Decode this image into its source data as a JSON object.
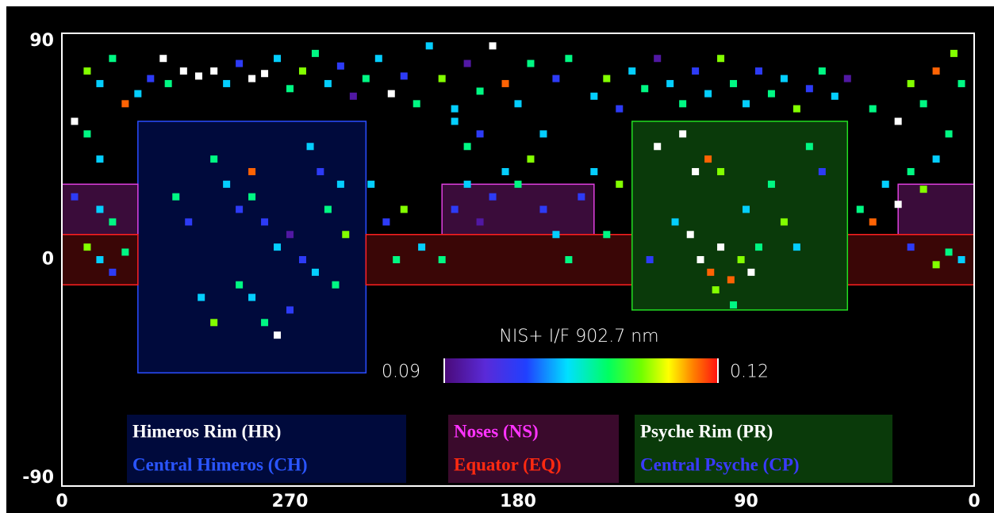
{
  "chart_data": {
    "type": "map",
    "xlim": [
      360,
      0
    ],
    "ylim": [
      -90,
      90
    ],
    "xticks": [
      {
        "value": 360,
        "label": "0"
      },
      270,
      180,
      90,
      0
    ],
    "yticks": [
      -90,
      0,
      90
    ],
    "colorbar": {
      "title": "NIS+ I/F 902.7 nm",
      "lim": [
        0.09,
        0.12
      ],
      "ticks": [
        0.09,
        0.12
      ]
    },
    "pixels": {
      "lon": [
        350,
        345,
        340,
        335,
        330,
        325,
        320,
        318,
        312,
        306,
        300,
        295,
        290,
        285,
        280,
        275,
        270,
        265,
        260,
        255,
        250,
        245,
        240,
        235,
        230,
        225,
        220,
        215,
        210,
        205,
        200,
        195,
        190,
        185,
        180,
        175,
        170,
        165,
        160,
        150,
        145,
        140,
        135,
        130,
        125,
        120,
        115,
        110,
        105,
        100,
        95,
        90,
        85,
        80,
        75,
        70,
        65,
        60,
        55,
        50,
        40,
        30,
        25,
        20,
        15,
        8,
        5,
        355,
        350,
        345,
        355,
        345,
        340,
        350,
        345,
        335,
        340,
        300,
        295,
        290,
        285,
        280,
        275,
        270,
        265,
        260,
        255,
        250,
        248,
        252,
        285,
        280,
        275,
        270,
        290,
        300,
        305,
        310,
        315,
        258,
        262,
        285,
        238,
        232,
        228,
        225,
        218,
        210,
        205,
        200,
        195,
        190,
        185,
        180,
        175,
        170,
        165,
        160,
        155,
        150,
        145,
        140,
        200,
        205,
        195,
        125,
        115,
        110,
        105,
        100,
        112,
        108,
        104,
        100,
        96,
        92,
        88,
        85,
        102,
        95,
        118,
        90,
        80,
        75,
        70,
        65,
        60,
        128,
        45,
        40,
        35,
        30,
        25,
        20,
        15,
        10,
        25,
        10,
        5,
        15
      ],
      "lat": [
        75,
        70,
        80,
        62,
        66,
        72,
        80,
        70,
        75,
        73,
        75,
        70,
        78,
        72,
        74,
        80,
        68,
        75,
        82,
        70,
        77,
        65,
        72,
        80,
        66,
        73,
        62,
        85,
        72,
        60,
        78,
        67,
        85,
        70,
        62,
        78,
        50,
        72,
        80,
        65,
        72,
        60,
        75,
        68,
        80,
        70,
        62,
        75,
        66,
        80,
        70,
        62,
        75,
        66,
        72,
        60,
        68,
        75,
        65,
        72,
        60,
        55,
        70,
        62,
        75,
        82,
        70,
        55,
        50,
        40,
        25,
        20,
        15,
        5,
        0,
        3,
        -5,
        40,
        30,
        20,
        25,
        15,
        5,
        10,
        0,
        -5,
        20,
        30,
        10,
        -10,
        -15,
        -25,
        -30,
        -20,
        -10,
        -25,
        -15,
        15,
        25,
        35,
        45,
        35,
        30,
        15,
        0,
        20,
        5,
        0,
        20,
        30,
        15,
        25,
        35,
        30,
        40,
        20,
        10,
        0,
        25,
        35,
        10,
        30,
        45,
        55,
        50,
        45,
        50,
        35,
        40,
        35,
        10,
        0,
        -5,
        5,
        -8,
        0,
        -5,
        5,
        -12,
        -18,
        15,
        20,
        30,
        15,
        5,
        45,
        35,
        0,
        20,
        15,
        30,
        22,
        35,
        28,
        40,
        50,
        5,
        3,
        0,
        -2
      ],
      "values": [
        0.112,
        0.103,
        0.107,
        0.118,
        0.103,
        0.098,
        0.125,
        0.107,
        0.125,
        0.125,
        0.125,
        0.103,
        0.098,
        0.125,
        0.125,
        0.103,
        0.107,
        0.112,
        0.107,
        0.103,
        0.098,
        0.092,
        0.107,
        0.103,
        0.125,
        0.098,
        0.107,
        0.103,
        0.112,
        0.103,
        0.092,
        0.107,
        0.125,
        0.118,
        0.103,
        0.107,
        0.103,
        0.098,
        0.107,
        0.103,
        0.112,
        0.098,
        0.103,
        0.107,
        0.092,
        0.103,
        0.107,
        0.098,
        0.103,
        0.112,
        0.107,
        0.103,
        0.098,
        0.107,
        0.103,
        0.112,
        0.098,
        0.107,
        0.103,
        0.092,
        0.107,
        0.125,
        0.112,
        0.107,
        0.118,
        0.112,
        0.107,
        0.125,
        0.107,
        0.103,
        0.098,
        0.103,
        0.107,
        0.112,
        0.103,
        0.107,
        0.098,
        0.107,
        0.103,
        0.098,
        0.107,
        0.098,
        0.103,
        0.092,
        0.098,
        0.103,
        0.107,
        0.103,
        0.112,
        0.107,
        0.103,
        0.107,
        0.125,
        0.098,
        0.107,
        0.112,
        0.103,
        0.098,
        0.107,
        0.098,
        0.103,
        0.118,
        0.103,
        0.098,
        0.107,
        0.112,
        0.103,
        0.107,
        0.098,
        0.103,
        0.092,
        0.098,
        0.103,
        0.107,
        0.112,
        0.098,
        0.103,
        0.107,
        0.098,
        0.103,
        0.107,
        0.112,
        0.107,
        0.103,
        0.098,
        0.125,
        0.125,
        0.125,
        0.118,
        0.112,
        0.125,
        0.125,
        0.118,
        0.125,
        0.118,
        0.112,
        0.125,
        0.107,
        0.112,
        0.107,
        0.103,
        0.103,
        0.107,
        0.112,
        0.103,
        0.107,
        0.098,
        0.098,
        0.107,
        0.118,
        0.103,
        0.125,
        0.107,
        0.112,
        0.103,
        0.107,
        0.098,
        0.107,
        0.103,
        0.112
      ]
    },
    "legend_panels": [
      {
        "fill": "#000a3c",
        "areas": [
          {
            "name": "Himeros Rim (HR)",
            "text_color": "#ffffff",
            "fill": "#000a3c",
            "stroke": "#2a4dff",
            "boxes": [
              {
                "lon": [
                  330,
                  240
                ],
                "lat": [
                  55,
                  -45
                ]
              }
            ]
          },
          {
            "name": "Central Himeros (CH)",
            "text_color": "#2a55ff"
          }
        ]
      },
      {
        "fill": "#3a0a2c",
        "areas": [
          {
            "name": "Noses (NS)",
            "text_color": "#ff33ff",
            "fill": "#3a0c3a",
            "stroke": "#e040e0",
            "boxes": [
              {
                "lon": [
                  360,
                  330
                ],
                "lat": [
                  30,
                  10
                ]
              },
              {
                "lon": [
                  210,
                  150
                ],
                "lat": [
                  30,
                  10
                ]
              },
              {
                "lon": [
                  30,
                  0
                ],
                "lat": [
                  30,
                  10
                ]
              }
            ]
          },
          {
            "name": "Equator (EQ)",
            "text_color": "#ff2a10",
            "fill": "#3a0606",
            "stroke": "#ff2020",
            "boxes": [
              {
                "lon": [
                  360,
                  330
                ],
                "lat": [
                  10,
                  -10
                ]
              },
              {
                "lon": [
                  240,
                  135
                ],
                "lat": [
                  10,
                  -10
                ]
              },
              {
                "lon": [
                  50,
                  0
                ],
                "lat": [
                  10,
                  -10
                ]
              }
            ]
          }
        ]
      },
      {
        "fill": "#0a3a0a",
        "areas": [
          {
            "name": "Psyche Rim (PR)",
            "text_color": "#ffffff",
            "fill": "#0a3a0a",
            "stroke": "#22dd22",
            "boxes": [
              {
                "lon": [
                  135,
                  50
                ],
                "lat": [
                  55,
                  -20
                ]
              }
            ]
          },
          {
            "name": "Central Psyche (CP)",
            "text_color": "#3a3aff"
          }
        ]
      }
    ]
  }
}
